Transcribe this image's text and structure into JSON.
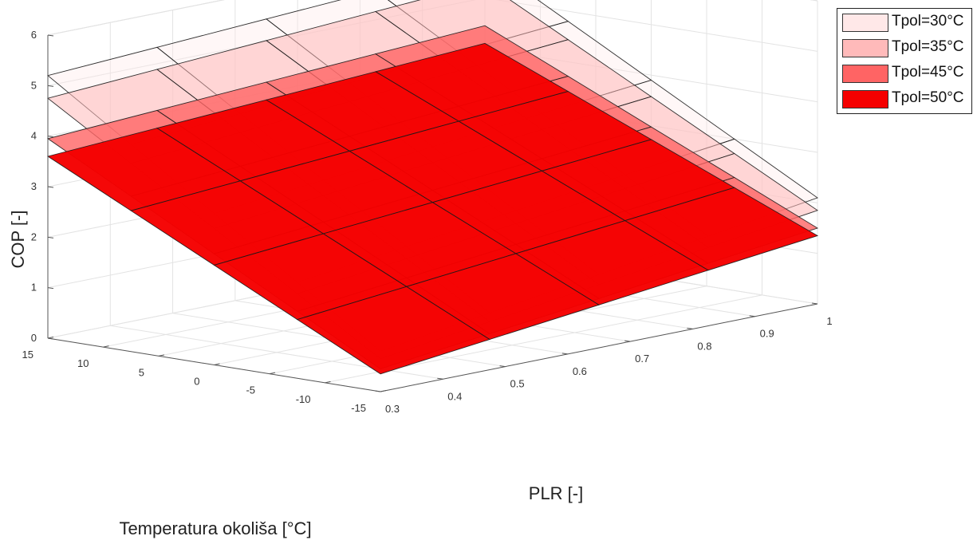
{
  "chart_data": {
    "type": "surface3d",
    "xlabel": "PLR [-]",
    "ylabel": "Temperatura okoliša [°C]",
    "zlabel": "COP [-]",
    "x_ticks": [
      "0.3",
      "0.4",
      "0.5",
      "0.6",
      "0.7",
      "0.8",
      "0.9",
      "1"
    ],
    "y_ticks": [
      "-15",
      "-10",
      "-5",
      "0",
      "5",
      "10",
      "15"
    ],
    "z_ticks": [
      "0",
      "1",
      "2",
      "3",
      "4",
      "5",
      "6"
    ],
    "xlim": [
      0.3,
      1
    ],
    "ylim": [
      -15,
      15
    ],
    "zlim": [
      0,
      6
    ],
    "grid": true,
    "legend_position": "top-right",
    "x_grid": [
      0.3,
      0.475,
      0.65,
      0.825,
      1.0
    ],
    "y_grid": [
      -15,
      -7.5,
      0,
      7.5,
      15
    ],
    "series": [
      {
        "name": "Tpol=30°C",
        "color": "#ffe8e8",
        "opacity": 0.35,
        "corners": {
          "x0y15": 5.2,
          "x1y15": 5.7,
          "x0y-15": 0.8,
          "x1y-15": 2.1
        }
      },
      {
        "name": "Tpol=35°C",
        "color": "#ffbaba",
        "opacity": 0.55,
        "corners": {
          "x0y15": 4.75,
          "x1y15": 5.3,
          "x0y-15": 0.65,
          "x1y-15": 1.85
        }
      },
      {
        "name": "Tpol=45°C",
        "color": "#ff6464",
        "opacity": 0.8,
        "corners": {
          "x0y15": 3.95,
          "x1y15": 4.45,
          "x0y-15": 0.45,
          "x1y-15": 1.5
        }
      },
      {
        "name": "Tpol=50°C",
        "color": "#f50000",
        "opacity": 0.97,
        "corners": {
          "x0y15": 3.6,
          "x1y15": 4.1,
          "x0y-15": 0.35,
          "x1y-15": 1.35
        }
      }
    ]
  }
}
